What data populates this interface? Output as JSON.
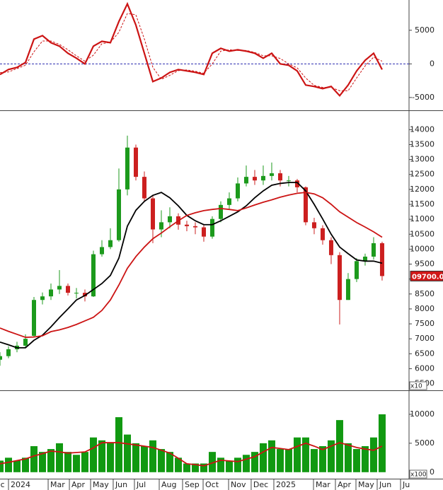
{
  "chart_data": [
    {
      "type": "line",
      "xlim": [
        0,
        48.17
      ],
      "ylim": [
        -6800,
        9500
      ],
      "yticks": [
        -5000,
        0,
        5000
      ],
      "zero_line": true,
      "zero_line_color": "#2b2bb0",
      "series": [
        {
          "color": "#cc1414",
          "dashed": false,
          "values": [
            -1580,
            -840,
            -530,
            210,
            3680,
            4200,
            3150,
            2630,
            1580,
            840,
            0,
            2630,
            3360,
            3150,
            6300,
            8930,
            5780,
            1580,
            -2630,
            -2100,
            -1260,
            -840,
            -1050,
            -1260,
            -1580,
            1580,
            2310,
            1890,
            2100,
            1890,
            1580,
            840,
            1580,
            0,
            -210,
            -1050,
            -3150,
            -3360,
            -3680,
            -3360,
            -4730,
            -3150,
            -1050,
            530,
            1580,
            -840
          ]
        },
        {
          "color": "#cc1414",
          "dashed": true,
          "values": [
            -1300,
            -1200,
            -700,
            -200,
            1800,
            3400,
            3400,
            2900,
            2100,
            1200,
            400,
            1300,
            3000,
            3200,
            4700,
            7500,
            7300,
            3700,
            -500,
            -2300,
            -1700,
            -1000,
            -900,
            -1100,
            -1400,
            0,
            1900,
            2100,
            2000,
            2000,
            1700,
            1200,
            1200,
            800,
            0,
            -600,
            -2100,
            -3200,
            -3500,
            -3500,
            -4000,
            -4000,
            -2100,
            -300,
            1000,
            400
          ]
        }
      ]
    },
    {
      "type": "candlestick",
      "xlim": [
        0,
        48.17
      ],
      "ylim": [
        5300,
        14600
      ],
      "yticks": [
        5500,
        6000,
        6500,
        7000,
        7500,
        8000,
        8500,
        9000,
        9500,
        10000,
        10500,
        11000,
        11500,
        12000,
        12500,
        13000,
        13500,
        14000
      ],
      "unit_label": "x10",
      "price_tag": "09700.00",
      "up_color": "#1c9a1c",
      "down_color": "#cc1f1f",
      "open": [
        6300,
        6420,
        6650,
        6770,
        7100,
        8300,
        8420,
        8650,
        8770,
        8540,
        8540,
        8420,
        9830,
        10070,
        10300,
        12000,
        13400,
        12420,
        11700,
        10660,
        10900,
        11100,
        10820,
        10770,
        10730,
        10420,
        11010,
        11480,
        11700,
        12200,
        12420,
        12300,
        12450,
        12540,
        12300,
        12300,
        12070,
        10900,
        10700,
        10300,
        9800,
        8300,
        9000,
        9600,
        9750,
        10200
      ],
      "high": [
        6550,
        6750,
        6900,
        7150,
        8400,
        8550,
        8850,
        9300,
        8850,
        8700,
        8650,
        9950,
        10300,
        10700,
        12700,
        13800,
        13500,
        12600,
        11800,
        11300,
        11400,
        11200,
        10950,
        10900,
        10800,
        11100,
        11600,
        11900,
        12400,
        12800,
        12650,
        12800,
        12900,
        12650,
        12450,
        12350,
        12100,
        11050,
        10800,
        10400,
        9900,
        9200,
        9700,
        9850,
        10400,
        10250
      ],
      "low": [
        6100,
        6350,
        6550,
        6700,
        7050,
        8150,
        8300,
        8500,
        8450,
        8350,
        8250,
        8400,
        9750,
        10000,
        10250,
        11800,
        12300,
        11600,
        10200,
        10400,
        10700,
        10650,
        10600,
        10500,
        10250,
        10350,
        10900,
        11350,
        11600,
        12100,
        12150,
        12150,
        12300,
        12100,
        12100,
        11900,
        10800,
        10500,
        10150,
        9500,
        7480,
        8300,
        8900,
        9450,
        9650,
        8950
      ],
      "close": [
        6420,
        6650,
        6770,
        7000,
        8300,
        8420,
        8650,
        8770,
        8540,
        8540,
        8420,
        9830,
        10070,
        10300,
        12000,
        13400,
        12420,
        11700,
        10660,
        10900,
        11100,
        10820,
        10770,
        10730,
        10420,
        11010,
        11480,
        11700,
        12200,
        12420,
        12300,
        12450,
        12540,
        12300,
        12300,
        12070,
        10900,
        10700,
        10300,
        9800,
        8300,
        9000,
        9600,
        9750,
        10200,
        9100
      ],
      "series": [
        {
          "color": "#000000",
          "values": [
            6890,
            6800,
            6700,
            6700,
            6950,
            7120,
            7400,
            7710,
            8000,
            8300,
            8450,
            8650,
            8850,
            9120,
            9700,
            10770,
            11300,
            11600,
            11800,
            11900,
            11720,
            11450,
            11130,
            10950,
            10820,
            10820,
            10950,
            11100,
            11250,
            11450,
            11720,
            11950,
            12140,
            12200,
            12230,
            12230,
            11950,
            11500,
            11010,
            10500,
            10070,
            9850,
            9640,
            9600,
            9600,
            9530
          ]
        },
        {
          "color": "#cc1414",
          "values": [
            7360,
            7250,
            7150,
            7050,
            7060,
            7100,
            7240,
            7300,
            7380,
            7480,
            7600,
            7720,
            7950,
            8300,
            8800,
            9360,
            9750,
            10070,
            10350,
            10540,
            10750,
            10950,
            11130,
            11220,
            11290,
            11330,
            11360,
            11330,
            11290,
            11380,
            11480,
            11570,
            11650,
            11740,
            11810,
            11870,
            11900,
            11850,
            11720,
            11500,
            11250,
            11070,
            10890,
            10740,
            10580,
            10400
          ]
        }
      ]
    },
    {
      "type": "bar",
      "xlim": [
        0,
        48.17
      ],
      "ylim": [
        -1000,
        13900
      ],
      "yticks": [
        0,
        5000,
        10000
      ],
      "unit_label": "x100",
      "color": "#119911",
      "values": [
        2000,
        2500,
        2000,
        2500,
        4500,
        3500,
        4000,
        5000,
        3500,
        3000,
        3500,
        6000,
        5500,
        5000,
        9500,
        6500,
        5000,
        4500,
        5500,
        4000,
        3500,
        2500,
        1500,
        1500,
        1500,
        3500,
        2500,
        2000,
        2500,
        3000,
        3500,
        5000,
        5500,
        4000,
        4000,
        6000,
        6000,
        4000,
        4500,
        5500,
        9000,
        5000,
        4000,
        4500,
        6000,
        10000
      ],
      "series": [
        {
          "color": "#cc1414",
          "values": [
            1460,
            1700,
            2000,
            2300,
            2800,
            3200,
            3650,
            3500,
            3300,
            3400,
            3500,
            4200,
            5100,
            5100,
            5100,
            4900,
            4700,
            4500,
            4270,
            3800,
            3300,
            2400,
            1460,
            1300,
            1100,
            1600,
            2070,
            1950,
            1830,
            2250,
            2680,
            3500,
            4270,
            4100,
            3900,
            4450,
            5000,
            4500,
            3900,
            4500,
            5100,
            4700,
            4270,
            4000,
            3780,
            4500
          ]
        }
      ],
      "xticks": [
        {
          "value": -0.2,
          "label": "c"
        },
        {
          "value": 1,
          "label": "2024"
        },
        {
          "value": 5.67,
          "label": "Mar"
        },
        {
          "value": 8.17,
          "label": "Apr"
        },
        {
          "value": 10.67,
          "label": "May"
        },
        {
          "value": 13.33,
          "label": "Jun"
        },
        {
          "value": 15.83,
          "label": "Jul"
        },
        {
          "value": 18.75,
          "label": "Aug"
        },
        {
          "value": 21.5,
          "label": "Sep"
        },
        {
          "value": 23.92,
          "label": "Oct"
        },
        {
          "value": 26.92,
          "label": "Nov"
        },
        {
          "value": 29.58,
          "label": "Dec"
        },
        {
          "value": 32.25,
          "label": "2025"
        },
        {
          "value": 36.92,
          "label": "Mar"
        },
        {
          "value": 39.5,
          "label": "Apr"
        },
        {
          "value": 41.92,
          "label": "May"
        },
        {
          "value": 44.42,
          "label": "Jun"
        },
        {
          "value": 47.17,
          "label": "Ju"
        }
      ]
    }
  ]
}
